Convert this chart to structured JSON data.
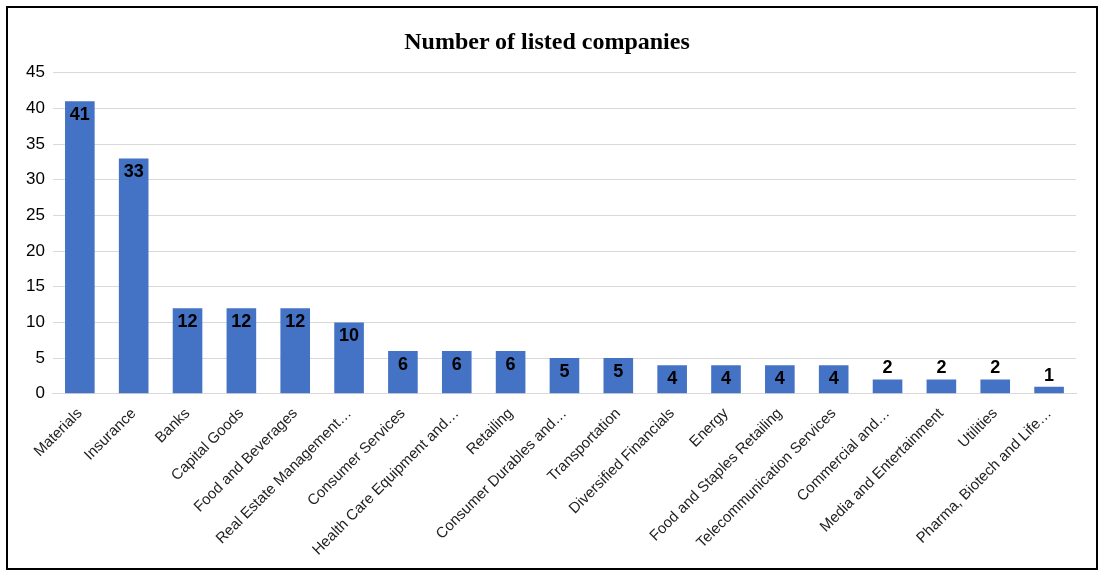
{
  "chart_data": {
    "type": "bar",
    "title": "Number of listed companies",
    "categories": [
      "Materials",
      "Insurance",
      "Banks",
      "Capital Goods",
      "Food and Beverages",
      "Real Estate Management…",
      "Consumer Services",
      "Health Care Equipment and…",
      "Retailing",
      "Consumer Durables and…",
      "Transportation",
      "Diversified Financials",
      "Energy",
      "Food and Staples Retailing",
      "Telecommunication Services",
      "Commercial and…",
      "Media and Entertainment",
      "Utilities",
      "Pharma, Biotech and Life…"
    ],
    "values": [
      41,
      33,
      12,
      12,
      12,
      10,
      6,
      6,
      6,
      5,
      5,
      4,
      4,
      4,
      4,
      2,
      2,
      2,
      1
    ],
    "color": "#4472c4",
    "ylim": [
      0,
      45
    ],
    "yticks": [
      0,
      5,
      10,
      15,
      20,
      25,
      30,
      35,
      40,
      45
    ],
    "grid": "y",
    "data_labels": true,
    "legend": false
  }
}
